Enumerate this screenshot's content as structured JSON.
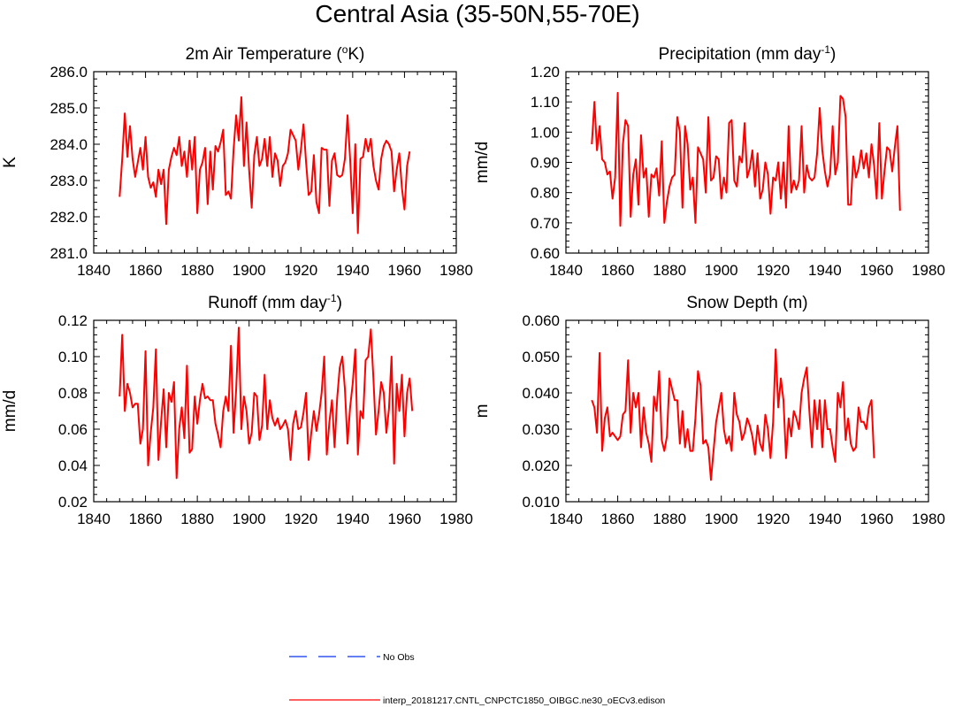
{
  "title": "Central Asia (35-50N,55-70E)",
  "colors": {
    "model": "#ff0000",
    "obs": "#3355ee",
    "axis": "#000000"
  },
  "legend": {
    "obs_label": "No Obs",
    "model_label": "interp_20181217.CNTL_CNPCTC1850_OIBGC.ne30_oECv3.edison"
  },
  "chart_data": [
    {
      "type": "line",
      "title": "2m Air Temperature (",
      "title_sup": "o",
      "title_post": "K)",
      "xlabel": "",
      "ylabel": "K",
      "xlim": [
        1840,
        1980
      ],
      "xticks": [
        1840,
        1860,
        1880,
        1900,
        1920,
        1940,
        1960,
        1980
      ],
      "ylim": [
        281.0,
        286.0
      ],
      "yticks": [
        "281.0",
        "282.0",
        "283.0",
        "284.0",
        "285.0",
        "286.0"
      ],
      "series": [
        {
          "name": "interp_20181217.CNTL_CNPCTC1850_OIBGC.ne30_oECv3.edison",
          "x_start": 1850,
          "values": [
            282.55,
            283.6,
            284.85,
            283.65,
            284.5,
            283.6,
            283.1,
            283.5,
            283.9,
            283.3,
            284.2,
            283.1,
            282.8,
            282.95,
            282.55,
            283.3,
            282.9,
            283.3,
            281.8,
            283.3,
            283.65,
            283.9,
            283.7,
            284.2,
            283.4,
            283.8,
            283.1,
            284.1,
            283.3,
            284.2,
            282.1,
            283.3,
            283.5,
            283.9,
            282.35,
            283.8,
            282.75,
            283.95,
            283.8,
            284.05,
            284.4,
            282.6,
            282.7,
            282.5,
            283.85,
            284.8,
            284.1,
            285.3,
            283.4,
            284.6,
            283.3,
            282.25,
            283.7,
            284.2,
            283.4,
            283.6,
            284.15,
            283.4,
            284.2,
            283.1,
            283.75,
            283.55,
            282.85,
            283.4,
            283.5,
            283.75,
            284.4,
            284.25,
            284.1,
            283.3,
            283.85,
            284.55,
            283.5,
            282.6,
            282.7,
            283.7,
            282.4,
            282.1,
            283.9,
            283.85,
            283.85,
            282.3,
            283.55,
            283.75,
            283.15,
            283.1,
            283.15,
            283.6,
            284.8,
            283.6,
            282.1,
            284.0,
            281.55,
            283.6,
            283.65,
            284.15,
            283.8,
            284.15,
            283.4,
            283.0,
            282.75,
            283.6,
            283.95,
            284.1,
            284.0,
            283.8,
            282.7,
            283.3,
            283.75,
            282.8,
            282.2,
            283.4,
            283.8
          ]
        }
      ]
    },
    {
      "type": "line",
      "title": "Precipitation (mm day",
      "title_sup": "-1",
      "title_post": ")",
      "xlabel": "",
      "ylabel": "mm/d",
      "xlim": [
        1840,
        1980
      ],
      "xticks": [
        1840,
        1860,
        1880,
        1900,
        1920,
        1940,
        1960,
        1980
      ],
      "ylim": [
        0.6,
        1.2
      ],
      "yticks": [
        "0.60",
        "0.70",
        "0.80",
        "0.90",
        "1.00",
        "1.10",
        "1.20"
      ],
      "series": [
        {
          "name": "interp_20181217.CNTL_CNPCTC1850_OIBGC.ne30_oECv3.edison",
          "x_start": 1850,
          "values": [
            0.96,
            1.1,
            0.94,
            1.02,
            0.91,
            0.9,
            0.86,
            0.87,
            0.78,
            0.85,
            1.13,
            0.69,
            0.96,
            1.04,
            1.02,
            0.72,
            0.86,
            0.91,
            0.76,
            0.99,
            0.85,
            0.88,
            0.72,
            0.86,
            0.85,
            0.88,
            0.79,
            0.97,
            0.7,
            0.77,
            0.82,
            0.85,
            0.86,
            1.05,
            1.0,
            0.75,
            1.02,
            0.96,
            0.81,
            0.85,
            0.7,
            0.95,
            0.93,
            0.91,
            0.8,
            1.05,
            0.84,
            0.85,
            0.92,
            0.91,
            0.78,
            0.85,
            0.8,
            1.03,
            1.04,
            0.84,
            0.82,
            0.92,
            0.9,
            1.03,
            0.85,
            0.88,
            0.94,
            0.82,
            0.93,
            0.78,
            0.81,
            0.9,
            0.86,
            0.73,
            0.85,
            0.84,
            0.9,
            0.78,
            0.9,
            0.75,
            1.02,
            0.8,
            0.84,
            0.81,
            0.84,
            1.02,
            0.8,
            0.89,
            0.85,
            0.84,
            0.85,
            0.93,
            1.08,
            0.94,
            0.87,
            0.82,
            0.86,
            1.02,
            0.86,
            0.9,
            1.12,
            1.11,
            1.05,
            0.76,
            0.76,
            0.92,
            0.85,
            0.88,
            0.94,
            0.88,
            0.93,
            0.85,
            0.96,
            0.89,
            0.78,
            1.03,
            0.78,
            0.87,
            0.95,
            0.94,
            0.87,
            0.95,
            1.02,
            0.74
          ]
        }
      ]
    },
    {
      "type": "line",
      "title": "Runoff (mm day",
      "title_sup": "-1",
      "title_post": ")",
      "xlabel": "",
      "ylabel": "mm/d",
      "xlim": [
        1840,
        1980
      ],
      "xticks": [
        1840,
        1860,
        1880,
        1900,
        1920,
        1940,
        1960,
        1980
      ],
      "ylim": [
        0.02,
        0.12
      ],
      "yticks": [
        "0.02",
        "0.04",
        "0.06",
        "0.08",
        "0.10",
        "0.12"
      ],
      "series": [
        {
          "name": "interp_20181217.CNTL_CNPCTC1850_OIBGC.ne30_oECv3.edison",
          "x_start": 1850,
          "values": [
            0.078,
            0.112,
            0.07,
            0.085,
            0.08,
            0.072,
            0.074,
            0.074,
            0.052,
            0.06,
            0.103,
            0.04,
            0.058,
            0.072,
            0.104,
            0.043,
            0.064,
            0.082,
            0.05,
            0.08,
            0.075,
            0.086,
            0.033,
            0.06,
            0.072,
            0.055,
            0.095,
            0.047,
            0.049,
            0.078,
            0.063,
            0.076,
            0.085,
            0.077,
            0.078,
            0.076,
            0.076,
            0.063,
            0.057,
            0.05,
            0.07,
            0.078,
            0.07,
            0.106,
            0.058,
            0.082,
            0.116,
            0.06,
            0.078,
            0.07,
            0.052,
            0.058,
            0.08,
            0.078,
            0.054,
            0.062,
            0.09,
            0.06,
            0.076,
            0.066,
            0.062,
            0.066,
            0.06,
            0.062,
            0.065,
            0.06,
            0.043,
            0.063,
            0.07,
            0.06,
            0.061,
            0.069,
            0.08,
            0.043,
            0.058,
            0.07,
            0.059,
            0.068,
            0.08,
            0.1,
            0.046,
            0.064,
            0.076,
            0.05,
            0.077,
            0.094,
            0.1,
            0.082,
            0.052,
            0.072,
            0.085,
            0.104,
            0.046,
            0.07,
            0.066,
            0.098,
            0.1,
            0.115,
            0.088,
            0.057,
            0.07,
            0.086,
            0.08,
            0.058,
            0.071,
            0.1,
            0.041,
            0.085,
            0.07,
            0.09,
            0.056,
            0.08,
            0.088,
            0.07
          ]
        }
      ]
    },
    {
      "type": "line",
      "title": "Snow Depth (m)",
      "title_sup": "",
      "title_post": "",
      "xlabel": "",
      "ylabel": "m",
      "xlim": [
        1840,
        1980
      ],
      "xticks": [
        1840,
        1860,
        1880,
        1900,
        1920,
        1940,
        1960,
        1980
      ],
      "ylim": [
        0.01,
        0.06
      ],
      "yticks": [
        "0.010",
        "0.020",
        "0.030",
        "0.040",
        "0.050",
        "0.060"
      ],
      "series": [
        {
          "name": "interp_20181217.CNTL_CNPCTC1850_OIBGC.ne30_oECv3.edison",
          "x_start": 1850,
          "values": [
            0.038,
            0.036,
            0.029,
            0.051,
            0.024,
            0.033,
            0.036,
            0.028,
            0.029,
            0.028,
            0.027,
            0.028,
            0.034,
            0.035,
            0.049,
            0.029,
            0.04,
            0.036,
            0.04,
            0.025,
            0.036,
            0.029,
            0.026,
            0.021,
            0.039,
            0.035,
            0.046,
            0.027,
            0.024,
            0.028,
            0.044,
            0.041,
            0.038,
            0.038,
            0.026,
            0.035,
            0.025,
            0.03,
            0.024,
            0.024,
            0.033,
            0.046,
            0.042,
            0.026,
            0.027,
            0.025,
            0.016,
            0.024,
            0.032,
            0.036,
            0.04,
            0.03,
            0.026,
            0.028,
            0.024,
            0.04,
            0.034,
            0.032,
            0.027,
            0.029,
            0.033,
            0.031,
            0.028,
            0.023,
            0.031,
            0.026,
            0.024,
            0.034,
            0.03,
            0.022,
            0.032,
            0.052,
            0.036,
            0.044,
            0.038,
            0.022,
            0.033,
            0.028,
            0.035,
            0.033,
            0.03,
            0.04,
            0.044,
            0.047,
            0.035,
            0.025,
            0.038,
            0.03,
            0.038,
            0.025,
            0.038,
            0.03,
            0.03,
            0.025,
            0.021,
            0.04,
            0.036,
            0.043,
            0.027,
            0.033,
            0.026,
            0.024,
            0.025,
            0.036,
            0.032,
            0.032,
            0.03,
            0.036,
            0.038,
            0.022
          ]
        }
      ]
    }
  ]
}
